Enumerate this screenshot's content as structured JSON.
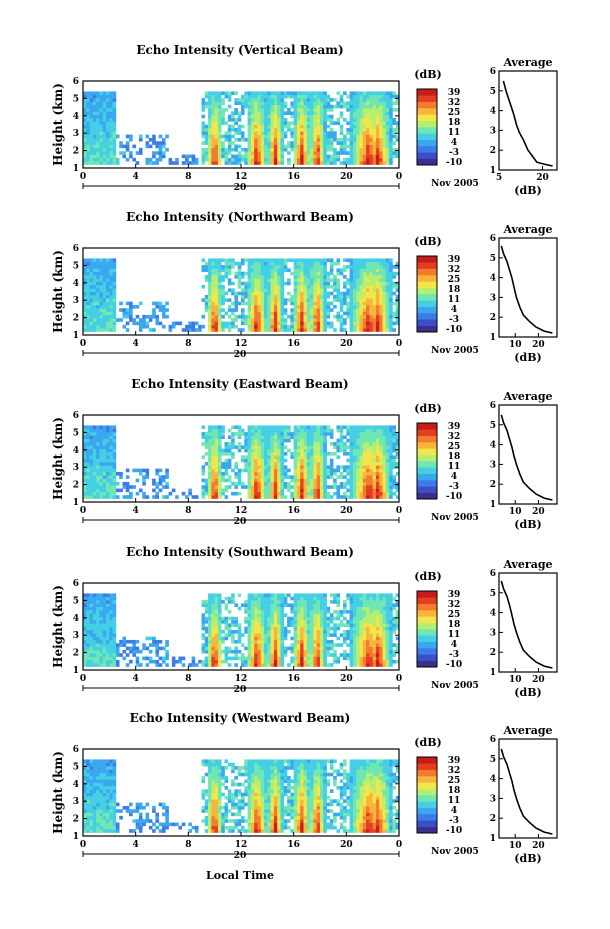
{
  "colorbar": {
    "unit_label": "(dB)",
    "tick_labels": [
      "39",
      "32",
      "25",
      "18",
      "11",
      "4",
      "-3",
      "-10"
    ],
    "colors": [
      "#3b2f8e",
      "#3a4fc9",
      "#3e7be8",
      "#3aa7ef",
      "#44cfe4",
      "#6fe6b3",
      "#b6ef6f",
      "#f2e64a",
      "#f9b43b",
      "#f47a2e",
      "#e53d22",
      "#c81b1b"
    ]
  },
  "shared": {
    "x_tick_labels": [
      "0",
      "4",
      "8",
      "12",
      "16",
      "20",
      "0"
    ],
    "day_label": "20",
    "month_label": "Nov 2005",
    "y_tick_labels": [
      "1",
      "2",
      "3",
      "4",
      "5",
      "6"
    ],
    "y_axis_label": "Height (km)",
    "x_axis_title": "Local Time"
  },
  "chart_data": [
    {
      "type": "heatmap",
      "title": "Echo Intensity (Vertical Beam)",
      "ylabel": "Height (km)",
      "xlim": [
        0,
        24
      ],
      "ylim": [
        1,
        6
      ],
      "colorbar_range_db": [
        -10,
        39
      ],
      "profile": {
        "title": "Average",
        "xlabel": "(dB)",
        "x_ticks": [
          "5",
          "20"
        ],
        "xlim": [
          5,
          25
        ],
        "points": [
          [
            6.5,
            5.5
          ],
          [
            7.4,
            5.0
          ],
          [
            8.3,
            4.6
          ],
          [
            9.2,
            4.2
          ],
          [
            10.1,
            3.8
          ],
          [
            11.0,
            3.3
          ],
          [
            12.0,
            2.9
          ],
          [
            13.5,
            2.5
          ],
          [
            15.0,
            2.0
          ],
          [
            16.5,
            1.7
          ],
          [
            18.0,
            1.4
          ],
          [
            20.5,
            1.3
          ],
          [
            23.5,
            1.2
          ]
        ]
      }
    },
    {
      "type": "heatmap",
      "title": "Echo Intensity (Northward Beam)",
      "ylabel": "Height (km)",
      "xlim": [
        0,
        24
      ],
      "ylim": [
        1,
        6
      ],
      "colorbar_range_db": [
        -10,
        39
      ],
      "profile": {
        "title": "Average",
        "xlabel": "(dB)",
        "x_ticks": [
          "10",
          "20"
        ],
        "xlim": [
          3,
          28
        ],
        "points": [
          [
            4.0,
            5.6
          ],
          [
            5.0,
            5.2
          ],
          [
            6.5,
            4.8
          ],
          [
            7.5,
            4.4
          ],
          [
            8.5,
            4.0
          ],
          [
            9.5,
            3.5
          ],
          [
            10.5,
            3.0
          ],
          [
            12.0,
            2.5
          ],
          [
            13.5,
            2.1
          ],
          [
            16.0,
            1.8
          ],
          [
            19.0,
            1.5
          ],
          [
            22.5,
            1.3
          ],
          [
            26.0,
            1.2
          ]
        ]
      }
    },
    {
      "type": "heatmap",
      "title": "Echo Intensity (Eastward Beam)",
      "ylabel": "Height (km)",
      "xlim": [
        0,
        24
      ],
      "ylim": [
        1,
        6
      ],
      "colorbar_range_db": [
        -10,
        39
      ],
      "profile": {
        "title": "Average",
        "xlabel": "(dB)",
        "x_ticks": [
          "10",
          "20"
        ],
        "xlim": [
          3,
          28
        ],
        "points": [
          [
            4.0,
            5.5
          ],
          [
            5.0,
            5.1
          ],
          [
            6.5,
            4.7
          ],
          [
            7.5,
            4.3
          ],
          [
            8.5,
            3.9
          ],
          [
            9.5,
            3.4
          ],
          [
            10.5,
            3.0
          ],
          [
            12.0,
            2.5
          ],
          [
            13.5,
            2.1
          ],
          [
            16.0,
            1.8
          ],
          [
            19.0,
            1.5
          ],
          [
            22.5,
            1.3
          ],
          [
            26.0,
            1.2
          ]
        ]
      }
    },
    {
      "type": "heatmap",
      "title": "Echo Intensity (Southward Beam)",
      "ylabel": "Height (km)",
      "xlim": [
        0,
        24
      ],
      "ylim": [
        1,
        6
      ],
      "colorbar_range_db": [
        -10,
        39
      ],
      "profile": {
        "title": "Average",
        "xlabel": "(dB)",
        "x_ticks": [
          "10",
          "20"
        ],
        "xlim": [
          3,
          28
        ],
        "points": [
          [
            4.0,
            5.6
          ],
          [
            5.0,
            5.2
          ],
          [
            6.5,
            4.8
          ],
          [
            7.5,
            4.4
          ],
          [
            8.5,
            3.9
          ],
          [
            9.5,
            3.4
          ],
          [
            10.5,
            3.0
          ],
          [
            12.0,
            2.5
          ],
          [
            13.5,
            2.1
          ],
          [
            16.0,
            1.8
          ],
          [
            19.0,
            1.5
          ],
          [
            22.5,
            1.3
          ],
          [
            26.0,
            1.2
          ]
        ]
      }
    },
    {
      "type": "heatmap",
      "title": "Echo Intensity (Westward Beam)",
      "ylabel": "Height (km)",
      "xlim": [
        0,
        24
      ],
      "ylim": [
        1,
        6
      ],
      "colorbar_range_db": [
        -10,
        39
      ],
      "profile": {
        "title": "Average",
        "xlabel": "(dB)",
        "x_ticks": [
          "10",
          "20"
        ],
        "xlim": [
          3,
          28
        ],
        "points": [
          [
            4.0,
            5.5
          ],
          [
            5.0,
            5.1
          ],
          [
            6.5,
            4.7
          ],
          [
            7.5,
            4.3
          ],
          [
            8.5,
            3.9
          ],
          [
            9.5,
            3.4
          ],
          [
            10.5,
            3.0
          ],
          [
            12.0,
            2.5
          ],
          [
            13.5,
            2.1
          ],
          [
            16.0,
            1.8
          ],
          [
            19.0,
            1.5
          ],
          [
            22.5,
            1.3
          ],
          [
            26.0,
            1.2
          ]
        ]
      }
    }
  ]
}
